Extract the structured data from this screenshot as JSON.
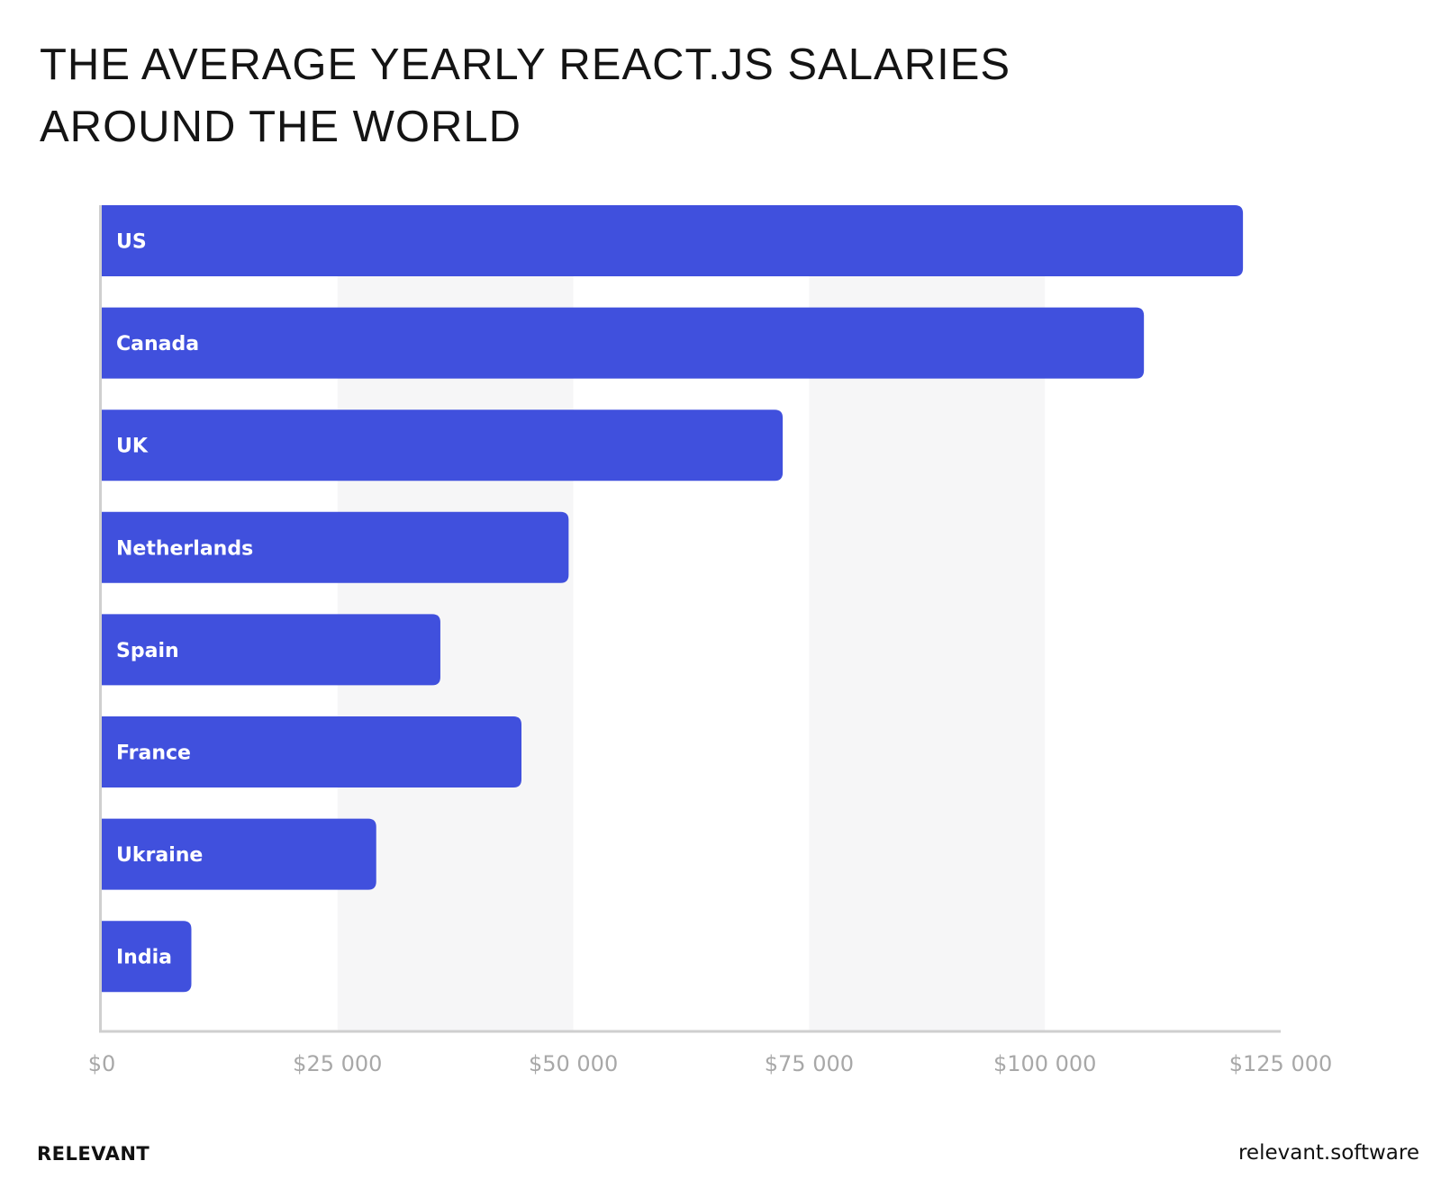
{
  "title_lines": [
    "THE AVERAGE YEARLY REACT.JS SALARIES",
    "AROUND THE WORLD"
  ],
  "footer": {
    "brand": "RELEVANT",
    "site": "relevant.software"
  },
  "colors": {
    "bar": "#4050dd",
    "band": "#f6f6f7",
    "axis": "#cfcfcf",
    "tick_label": "#a8a8a8",
    "bar_label": "#ffffff"
  },
  "chart_data": {
    "type": "bar",
    "orientation": "horizontal",
    "categories": [
      "US",
      "Canada",
      "UK",
      "Netherlands",
      "Spain",
      "France",
      "Ukraine",
      "India"
    ],
    "values": [
      121000,
      110500,
      72200,
      49500,
      35900,
      44500,
      29100,
      9500
    ],
    "xlim": [
      0,
      125000
    ],
    "xticks": [
      0,
      25000,
      50000,
      75000,
      100000,
      125000
    ],
    "xtick_labels": [
      "$0",
      "$25 000",
      "$50 000",
      "$75 000",
      "$100 000",
      "$125 000"
    ],
    "alternating_bands": true,
    "legend": "none"
  }
}
